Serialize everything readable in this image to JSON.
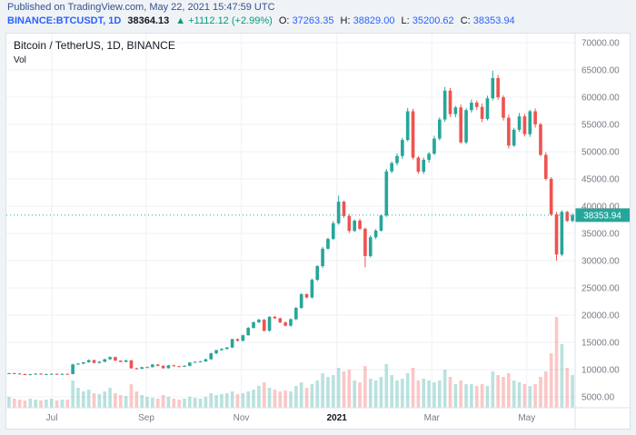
{
  "published_bar": {
    "text": "Published on TradingView.com, May 22, 2021 15:47:59 UTC"
  },
  "symbol_bar": {
    "symbol": "BINANCE:BTCUSDT, 1D",
    "price": "38364.13",
    "arrow": "▲",
    "change": "+1112.12 (+2.99%)",
    "open_label": "O:",
    "open": "37263.35",
    "high_label": "H:",
    "high": "38829.00",
    "low_label": "L:",
    "low": "35200.62",
    "close_label": "C:",
    "close": "38353.94"
  },
  "chart": {
    "vol_label": "Vol",
    "colors": {
      "up": "#26a69a",
      "down": "#ef5350",
      "up_vol": "rgba(38,166,154,0.32)",
      "down_vol": "rgba(239,83,80,0.32)",
      "grid": "#eef1f7",
      "axis_text": "#787b86",
      "axis_text_bold": "#131722",
      "border": "#dde1e8",
      "badge_bg": "#26a69a",
      "badge_text": "#ffffff"
    }
  },
  "chart_data": {
    "type": "candlestick+volume",
    "title": "Bitcoin / TetherUS, 1D, BINANCE",
    "symbol": "BINANCE:BTCUSDT",
    "interval": "1D",
    "last_price": 38353.94,
    "last_price_label": "38353.94",
    "y_axis": {
      "min": 5000,
      "max": 70000,
      "step": 5000,
      "labels": [
        "70000.00",
        "65000.00",
        "60000.00",
        "55000.00",
        "50000.00",
        "45000.00",
        "40000.00",
        "35000.00",
        "30000.00",
        "25000.00",
        "20000.00",
        "15000.00",
        "10000.00",
        "5000.00"
      ]
    },
    "x_ticks": [
      {
        "label": "Jul",
        "pos": 0.08,
        "bold": false
      },
      {
        "label": "Sep",
        "pos": 0.246,
        "bold": false
      },
      {
        "label": "Nov",
        "pos": 0.413,
        "bold": false
      },
      {
        "label": "2021",
        "pos": 0.581,
        "bold": true
      },
      {
        "label": "Mar",
        "pos": 0.748,
        "bold": false
      },
      {
        "label": "May",
        "pos": 0.915,
        "bold": false
      }
    ],
    "closes": [
      9350,
      9280,
      9160,
      9080,
      9150,
      9250,
      9120,
      9180,
      9230,
      9160,
      9210,
      9190,
      10950,
      11100,
      11350,
      11750,
      11230,
      11450,
      11900,
      12300,
      11650,
      11420,
      11700,
      10250,
      10160,
      10440,
      10460,
      10940,
      10690,
      10260,
      10790,
      10620,
      10560,
      10700,
      11290,
      11420,
      11510,
      11910,
      12990,
      13560,
      13790,
      14060,
      15590,
      15310,
      16310,
      17650,
      18690,
      19150,
      17140,
      19690,
      19420,
      18650,
      18060,
      19260,
      21310,
      23840,
      23240,
      26480,
      28990,
      32190,
      33990,
      36860,
      40810,
      38180,
      35450,
      37340,
      35840,
      30850,
      34290,
      35510,
      38290,
      46390,
      47910,
      49200,
      52140,
      57410,
      48900,
      46310,
      48510,
      49630,
      52400,
      55910,
      61190,
      56900,
      58120,
      51700,
      57620,
      58990,
      58210,
      56010,
      59790,
      63500,
      59980,
      56220,
      51120,
      54020,
      56480,
      53210,
      57410,
      55010,
      49410,
      45020,
      38510,
      31120,
      38940,
      37290,
      38353.94
    ],
    "volumes": [
      12,
      10,
      9,
      8,
      10,
      9,
      8,
      9,
      10,
      8,
      9,
      9,
      30,
      22,
      18,
      20,
      16,
      15,
      18,
      22,
      16,
      14,
      13,
      26,
      18,
      14,
      12,
      11,
      10,
      14,
      12,
      10,
      9,
      10,
      12,
      11,
      10,
      12,
      16,
      14,
      15,
      16,
      18,
      15,
      16,
      18,
      20,
      24,
      28,
      22,
      20,
      18,
      19,
      18,
      24,
      28,
      22,
      26,
      30,
      38,
      34,
      36,
      44,
      40,
      42,
      30,
      28,
      46,
      32,
      30,
      34,
      48,
      36,
      30,
      32,
      38,
      44,
      30,
      32,
      30,
      28,
      30,
      42,
      34,
      26,
      30,
      26,
      26,
      24,
      26,
      24,
      40,
      36,
      34,
      38,
      30,
      28,
      26,
      24,
      26,
      34,
      40,
      60,
      100,
      70,
      44,
      36
    ],
    "low_overrides": {
      "67": 28800,
      "103": 30000
    },
    "high_overrides": {
      "62": 41950,
      "91": 64850
    }
  }
}
